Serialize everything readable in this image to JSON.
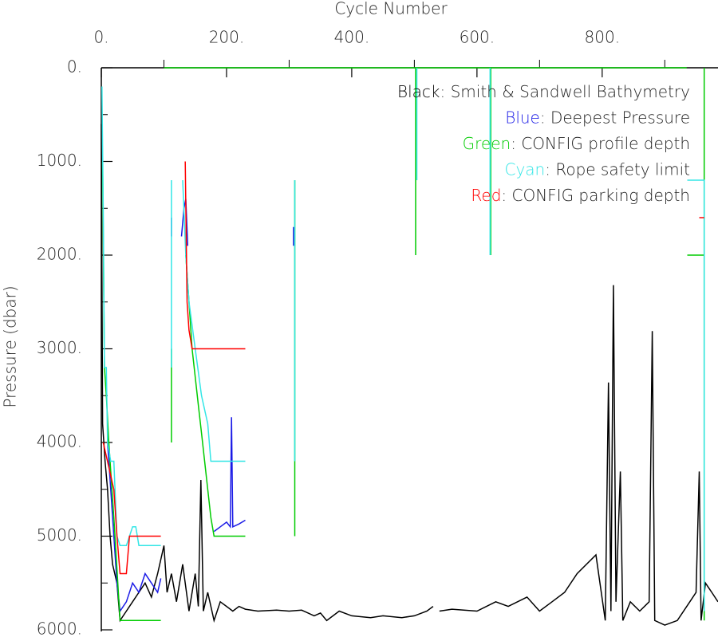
{
  "chart_data": {
    "type": "line",
    "x_label": "Cycle Number",
    "y_label": "Pressure (dbar)",
    "xlim": [
      0,
      985
    ],
    "ylim": [
      0,
      6000
    ],
    "invert_y": true,
    "x_axis_position": "top",
    "xticks": [
      {
        "value": 0,
        "label": "0."
      },
      {
        "value": 200,
        "label": "200."
      },
      {
        "value": 400,
        "label": "400."
      },
      {
        "value": 600,
        "label": "600."
      },
      {
        "value": 800,
        "label": "800."
      }
    ],
    "x_minor_ticks": [
      100,
      300,
      500,
      700,
      900
    ],
    "yticks": [
      {
        "value": 0,
        "label": "0."
      },
      {
        "value": 1000,
        "label": "1000."
      },
      {
        "value": 2000,
        "label": "2000."
      },
      {
        "value": 3000,
        "label": "3000."
      },
      {
        "value": 4000,
        "label": "4000."
      },
      {
        "value": 5000,
        "label": "5000."
      },
      {
        "value": 6000,
        "label": "6000."
      }
    ],
    "y_minor_ticks": [
      500,
      1500,
      2500,
      3500,
      4500,
      5500
    ],
    "legend_position": "upper right",
    "legend_separator": ": ",
    "series": [
      {
        "label": "Black",
        "name": "Smith & Sandwell Bathymetry",
        "color": "#000000",
        "x": [
          0,
          2,
          6,
          10,
          14,
          18,
          25,
          30,
          40,
          50,
          60,
          70,
          80,
          90,
          100,
          105,
          112,
          120,
          130,
          140,
          150,
          155,
          159,
          163,
          170,
          180,
          190,
          200,
          210,
          220,
          230,
          250,
          280,
          300,
          320,
          340,
          350,
          360,
          380,
          400,
          430,
          450,
          480,
          500,
          520,
          530,
          null,
          540,
          560,
          600,
          630,
          650,
          680,
          700,
          720,
          740,
          760,
          790,
          805,
          810,
          814,
          818,
          822,
          829,
          833,
          845,
          860,
          875,
          880,
          884,
          900,
          920,
          940,
          950,
          955,
          958,
          965,
          975,
          985
        ],
        "values": [
          600,
          3800,
          4200,
          4500,
          5000,
          5300,
          5500,
          5900,
          5800,
          5700,
          5600,
          5500,
          5650,
          5400,
          5100,
          5600,
          5400,
          5700,
          5300,
          5800,
          5400,
          5750,
          4400,
          5800,
          5600,
          5900,
          5700,
          5750,
          5800,
          5750,
          5780,
          5800,
          5790,
          5800,
          5790,
          5850,
          5820,
          5900,
          5800,
          5850,
          5870,
          5850,
          5870,
          5850,
          5800,
          5750,
          null,
          5800,
          5780,
          5800,
          5700,
          5750,
          5650,
          5800,
          5700,
          5600,
          5400,
          5200,
          5900,
          3360,
          5800,
          2320,
          5700,
          4310,
          5900,
          5700,
          5800,
          5700,
          2810,
          5900,
          5950,
          5900,
          5700,
          5600,
          4310,
          5900,
          5500,
          5600,
          5700
        ]
      },
      {
        "label": "Blue",
        "name": "Deepest Pressure",
        "color": "#1a1ae6",
        "x": [
          10,
          15,
          20,
          25,
          30,
          40,
          50,
          60,
          70,
          80,
          90,
          95,
          null,
          112,
          112,
          null,
          128,
          132,
          135,
          138,
          null,
          180,
          190,
          200,
          206,
          208,
          210,
          220,
          230,
          null,
          307,
          307
        ],
        "values": [
          4000,
          4500,
          5000,
          5500,
          5800,
          5700,
          5500,
          5600,
          5400,
          5500,
          5600,
          5450,
          null,
          1600,
          1800,
          null,
          1800,
          1500,
          1400,
          1900,
          null,
          4950,
          4900,
          4850,
          4900,
          3730,
          4900,
          4870,
          4830,
          null,
          1700,
          1900
        ]
      },
      {
        "label": "Green",
        "name": "CONFIG profile depth",
        "color": "#00cc00",
        "x": [
          2,
          5,
          8,
          12,
          20,
          30,
          95,
          null,
          112,
          112,
          null,
          135,
          140,
          145,
          150,
          155,
          160,
          165,
          170,
          175,
          180,
          230,
          null,
          309,
          309,
          null,
          100,
          935,
          null,
          502,
          502,
          null,
          622,
          622,
          null,
          963,
          963,
          936,
          null,
          963,
          963
        ],
        "values": [
          1000,
          3200,
          3500,
          4000,
          4800,
          5900,
          5900,
          null,
          3000,
          4000,
          null,
          2000,
          2500,
          3000,
          3300,
          3600,
          3900,
          4200,
          4500,
          4800,
          5000,
          5000,
          null,
          1200,
          5000,
          null,
          0,
          0,
          null,
          0,
          2000,
          null,
          0,
          2000,
          null,
          0,
          2000,
          2000,
          null,
          2000,
          5900
        ]
      },
      {
        "label": "Cyan",
        "name": "Rope safety limit",
        "color": "#33e6e6",
        "x": [
          1,
          3,
          5,
          8,
          10,
          15,
          20,
          25,
          30,
          40,
          50,
          55,
          60,
          95,
          null,
          112,
          112,
          null,
          130,
          135,
          140,
          150,
          160,
          170,
          175,
          230,
          null,
          309,
          309,
          null,
          504,
          504,
          null,
          621,
          621,
          null,
          936,
          963,
          963
        ],
        "values": [
          200,
          1500,
          3200,
          3200,
          4000,
          4200,
          4200,
          5000,
          5100,
          5100,
          4900,
          4900,
          5100,
          5100,
          null,
          1200,
          3200,
          null,
          1200,
          2000,
          2500,
          3000,
          3500,
          3800,
          4200,
          4200,
          null,
          1200,
          4200,
          null,
          0,
          1200,
          null,
          0,
          2000,
          null,
          1200,
          1200,
          5800
        ]
      },
      {
        "label": "Red",
        "name": "CONFIG parking depth",
        "color": "#ff0000",
        "x": [
          3,
          20,
          25,
          30,
          40,
          45,
          95,
          null,
          134,
          137,
          140,
          145,
          230,
          null,
          955,
          963
        ],
        "values": [
          4000,
          4500,
          5000,
          5400,
          5400,
          5000,
          5000,
          null,
          1000,
          2500,
          2800,
          3000,
          3000,
          null,
          1600,
          1600
        ]
      }
    ]
  }
}
